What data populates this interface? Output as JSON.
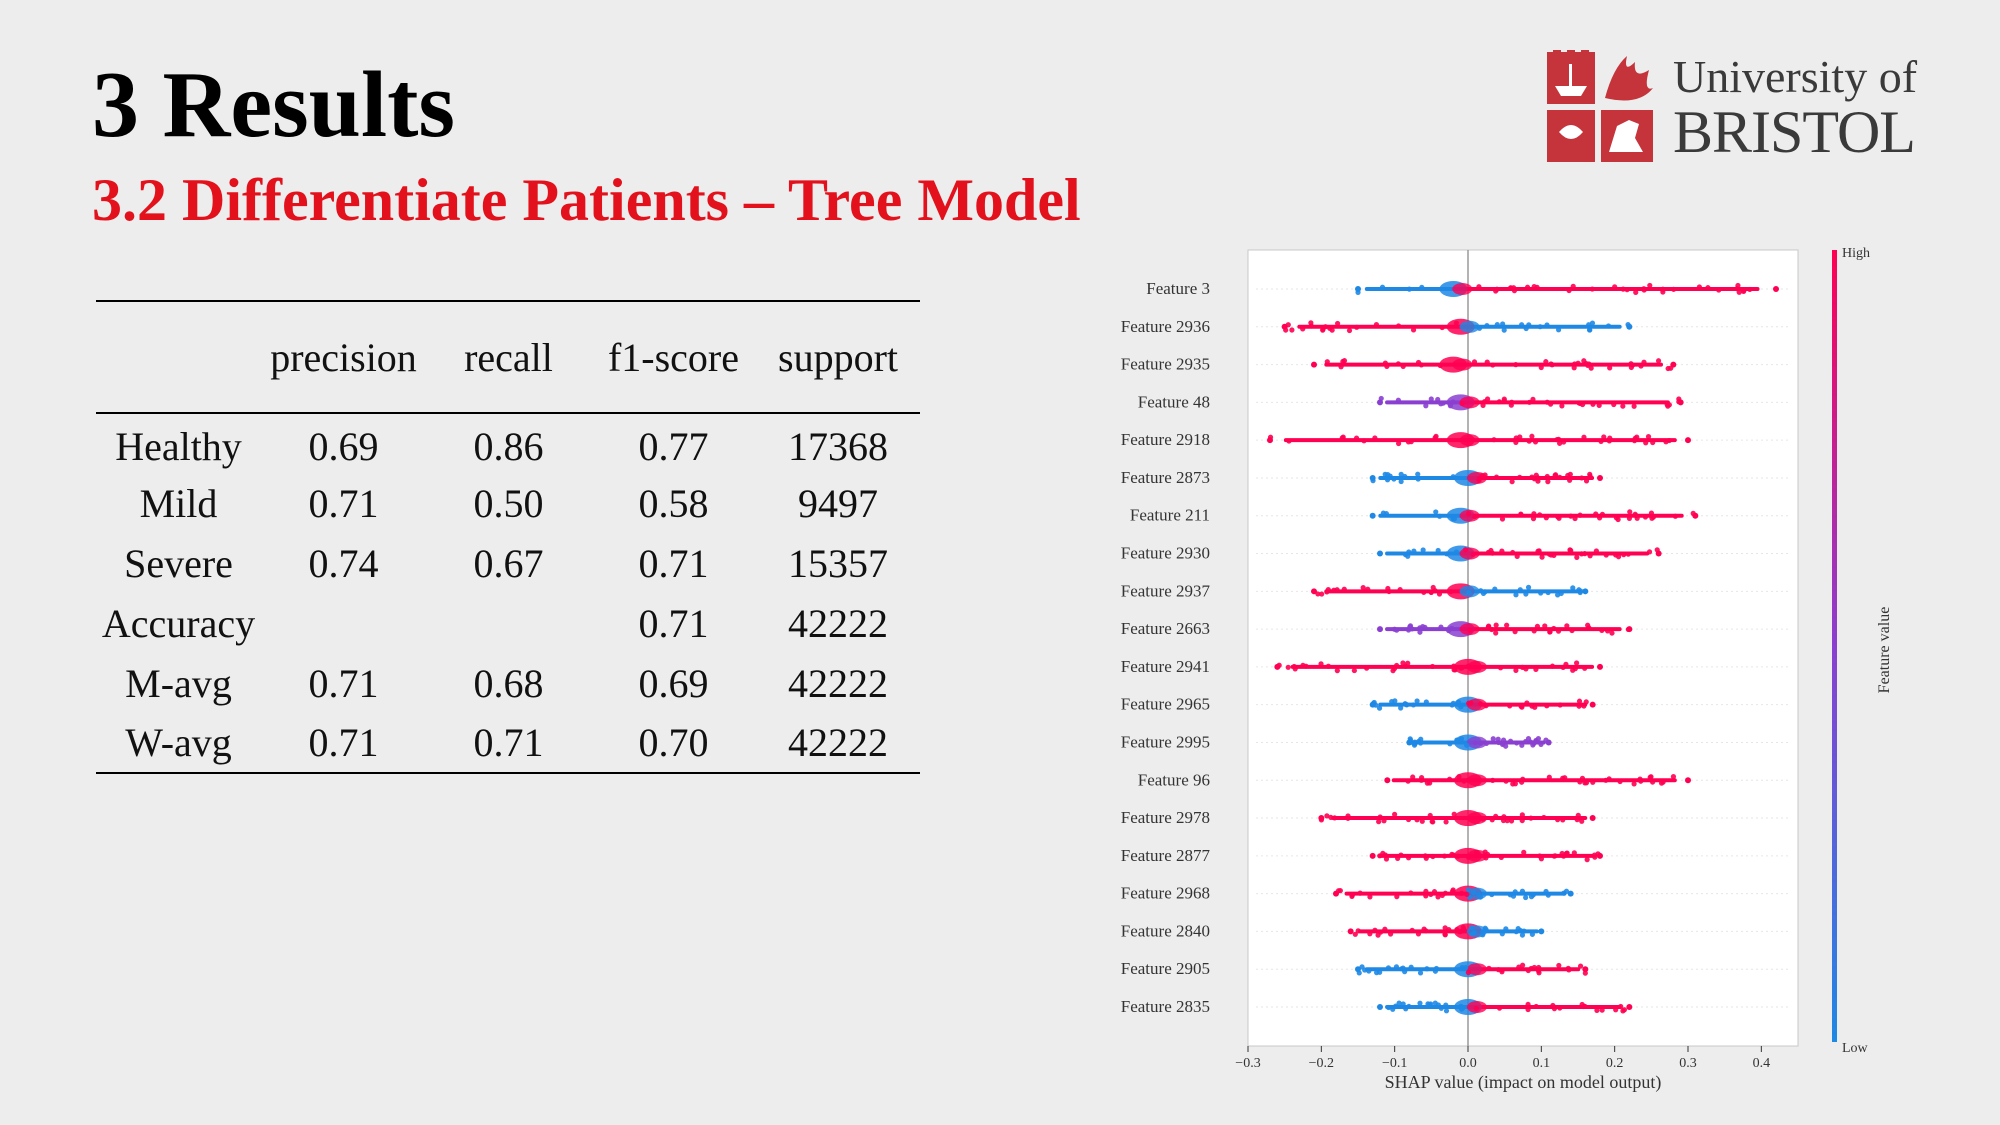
{
  "slide": {
    "title": "3 Results",
    "subtitle": "3.2 Differentiate Patients – Tree Model",
    "logo_line1": "University of",
    "logo_line2": "BRISTOL"
  },
  "colors": {
    "accent_red": "#e3111b",
    "logo_red": "#c4343a",
    "shap_high": "#ff0052",
    "shap_low": "#1e88e5"
  },
  "table": {
    "headers": [
      "",
      "precision",
      "recall",
      "f1-score",
      "support"
    ],
    "rows": [
      [
        "Healthy",
        "0.69",
        "0.86",
        "0.77",
        "17368"
      ],
      [
        "Mild",
        "0.71",
        "0.50",
        "0.58",
        "9497"
      ],
      [
        "Severe",
        "0.74",
        "0.67",
        "0.71",
        "15357"
      ],
      [
        "Accuracy",
        "",
        "",
        "0.71",
        "42222"
      ],
      [
        "M-avg",
        "0.71",
        "0.68",
        "0.69",
        "42222"
      ],
      [
        "W-avg",
        "0.71",
        "0.71",
        "0.70",
        "42222"
      ]
    ]
  },
  "chart_data": {
    "type": "scatter",
    "subtype": "shap-beeswarm",
    "xlabel": "SHAP value (impact on model output)",
    "xlim": [
      -0.3,
      0.45
    ],
    "xticks": [
      -0.3,
      -0.2,
      -0.1,
      0.0,
      0.1,
      0.2,
      0.3,
      0.4
    ],
    "xtick_labels": [
      "−0.3",
      "−0.2",
      "−0.1",
      "0.0",
      "0.1",
      "0.2",
      "0.3",
      "0.4"
    ],
    "colorbar": {
      "label": "Feature value",
      "high_label": "High",
      "low_label": "Low",
      "high_color": "#ff0052",
      "low_color": "#1e88e5"
    },
    "features": [
      {
        "name": "Feature 3",
        "min": -0.15,
        "max": 0.42,
        "center": -0.02,
        "pos_color": "high",
        "neg_color": "low"
      },
      {
        "name": "Feature 2936",
        "min": -0.25,
        "max": 0.22,
        "center": -0.01,
        "pos_color": "low",
        "neg_color": "high"
      },
      {
        "name": "Feature 2935",
        "min": -0.21,
        "max": 0.28,
        "center": -0.02,
        "pos_color": "high",
        "neg_color": "high"
      },
      {
        "name": "Feature 48",
        "min": -0.12,
        "max": 0.29,
        "center": -0.01,
        "pos_color": "high",
        "neg_color": "mix"
      },
      {
        "name": "Feature 2918",
        "min": -0.27,
        "max": 0.3,
        "center": -0.01,
        "pos_color": "high",
        "neg_color": "high"
      },
      {
        "name": "Feature 2873",
        "min": -0.13,
        "max": 0.18,
        "center": 0.0,
        "pos_color": "high",
        "neg_color": "low"
      },
      {
        "name": "Feature 211",
        "min": -0.13,
        "max": 0.31,
        "center": -0.01,
        "pos_color": "high",
        "neg_color": "low"
      },
      {
        "name": "Feature 2930",
        "min": -0.12,
        "max": 0.26,
        "center": -0.01,
        "pos_color": "high",
        "neg_color": "low"
      },
      {
        "name": "Feature 2937",
        "min": -0.21,
        "max": 0.16,
        "center": -0.01,
        "pos_color": "low",
        "neg_color": "high"
      },
      {
        "name": "Feature 2663",
        "min": -0.12,
        "max": 0.22,
        "center": -0.01,
        "pos_color": "high",
        "neg_color": "mix"
      },
      {
        "name": "Feature 2941",
        "min": -0.26,
        "max": 0.18,
        "center": 0.0,
        "pos_color": "high",
        "neg_color": "high"
      },
      {
        "name": "Feature 2965",
        "min": -0.13,
        "max": 0.17,
        "center": 0.0,
        "pos_color": "high",
        "neg_color": "low"
      },
      {
        "name": "Feature 2995",
        "min": -0.08,
        "max": 0.11,
        "center": 0.0,
        "pos_color": "mix",
        "neg_color": "low"
      },
      {
        "name": "Feature 96",
        "min": -0.11,
        "max": 0.3,
        "center": 0.0,
        "pos_color": "high",
        "neg_color": "high"
      },
      {
        "name": "Feature 2978",
        "min": -0.2,
        "max": 0.17,
        "center": 0.0,
        "pos_color": "high",
        "neg_color": "high"
      },
      {
        "name": "Feature 2877",
        "min": -0.13,
        "max": 0.18,
        "center": 0.0,
        "pos_color": "high",
        "neg_color": "high"
      },
      {
        "name": "Feature 2968",
        "min": -0.18,
        "max": 0.14,
        "center": 0.0,
        "pos_color": "low",
        "neg_color": "high"
      },
      {
        "name": "Feature 2840",
        "min": -0.16,
        "max": 0.1,
        "center": 0.0,
        "pos_color": "low",
        "neg_color": "high"
      },
      {
        "name": "Feature 2905",
        "min": -0.15,
        "max": 0.16,
        "center": 0.0,
        "pos_color": "high",
        "neg_color": "low"
      },
      {
        "name": "Feature 2835",
        "min": -0.12,
        "max": 0.22,
        "center": 0.0,
        "pos_color": "high",
        "neg_color": "low"
      }
    ]
  }
}
